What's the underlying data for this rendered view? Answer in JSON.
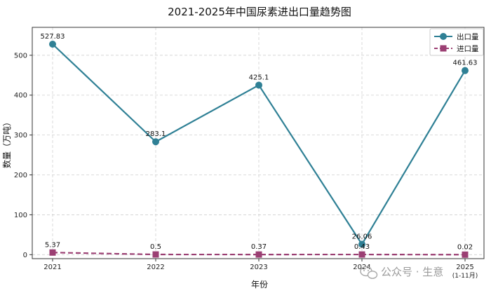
{
  "chart_data": {
    "type": "line",
    "title": "2021-2025年中国尿素进出口量趋势图",
    "xlabel": "年份",
    "ylabel": "数量（万吨）",
    "categories": [
      "2021",
      "2022",
      "2023",
      "2024",
      "2025"
    ],
    "category_sublabels": [
      "",
      "",
      "",
      "",
      "(1-11月)"
    ],
    "ylim": [
      -10,
      570
    ],
    "yticks": [
      0,
      100,
      200,
      300,
      400,
      500
    ],
    "grid": true,
    "legend_position": "top-right",
    "series": [
      {
        "name": "出口量",
        "values": [
          527.83,
          283.1,
          425.1,
          26.06,
          461.63
        ],
        "labels": [
          "527.83",
          "283.1",
          "425.1",
          "26.06",
          "461.63"
        ],
        "color": "#2f8095",
        "marker": "circle",
        "linestyle": "solid"
      },
      {
        "name": "进口量",
        "values": [
          5.37,
          0.5,
          0.37,
          0.43,
          0.02
        ],
        "labels": [
          "5.37",
          "0.5",
          "0.37",
          "0.43",
          "0.02"
        ],
        "color": "#9b3f73",
        "marker": "square",
        "linestyle": "dashed"
      }
    ]
  },
  "watermark": {
    "icon": "wechat-icon",
    "text": "公众号 · 生意"
  }
}
